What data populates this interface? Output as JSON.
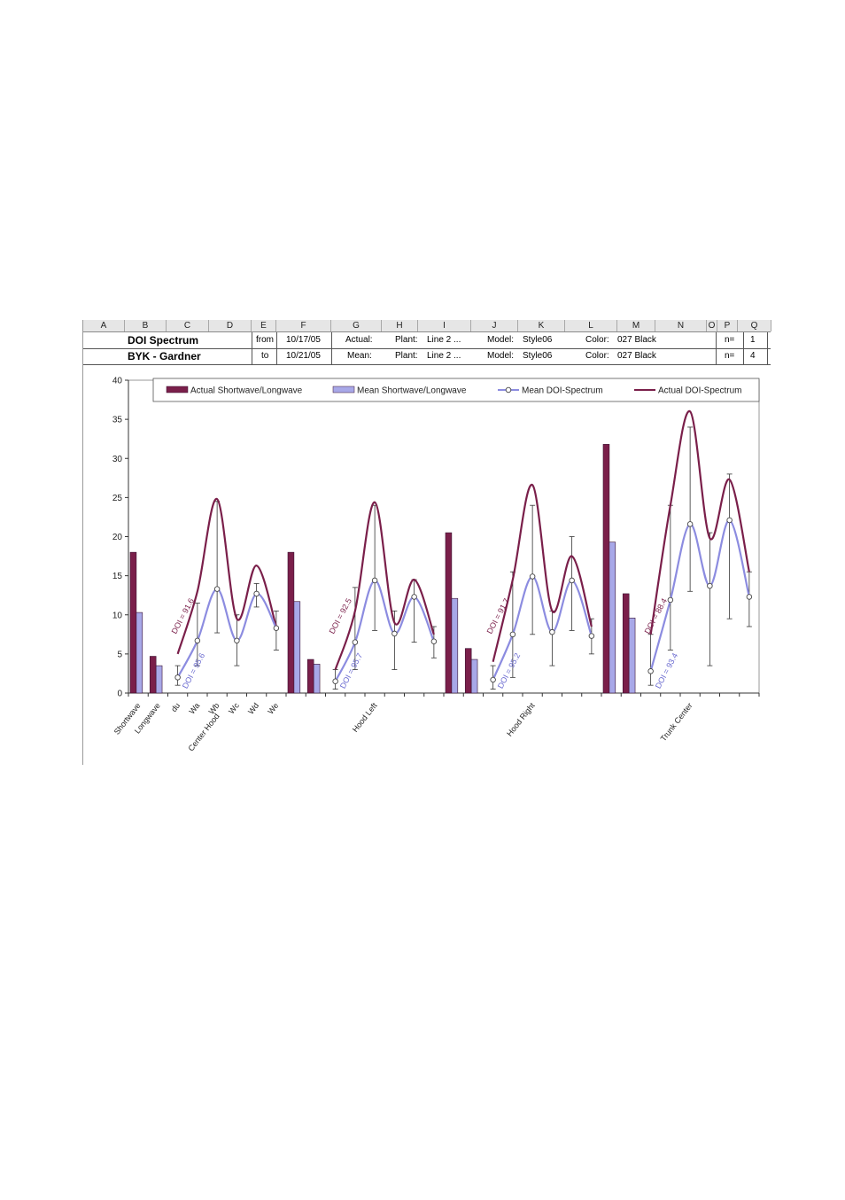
{
  "columns": [
    "A",
    "B",
    "C",
    "D",
    "E",
    "F",
    "G",
    "H",
    "I",
    "J",
    "K",
    "L",
    "M",
    "N",
    "O",
    "P",
    "Q"
  ],
  "info": {
    "row1": {
      "title": "DOI Spectrum",
      "from_label": "from",
      "from_date": "10/17/05",
      "type": "Actual:",
      "plant_label": "Plant:",
      "plant": "Line 2 ...",
      "model_label": "Model:",
      "model": "Style06",
      "color_label": "Color:",
      "color": "027 Black",
      "n_label": "n=",
      "n": "1"
    },
    "row2": {
      "title": "BYK - Gardner",
      "to_label": "to",
      "to_date": "10/21/05",
      "type": "Mean:",
      "plant_label": "Plant:",
      "plant": "Line 2 ...",
      "model_label": "Model:",
      "model": "Style06",
      "color_label": "Color:",
      "color": "027 Black",
      "n_label": "n=",
      "n": "4"
    }
  },
  "colors": {
    "actual_bar": "#7a1f4a",
    "mean_bar": "#a8a8e8",
    "mean_line": "#8c8ce0",
    "actual_line": "#7a1f4a",
    "error_bar": "#333333"
  },
  "chart_data": {
    "type": "bar",
    "ylim": [
      0,
      40
    ],
    "yticks": [
      0,
      5,
      10,
      15,
      20,
      25,
      30,
      35,
      40
    ],
    "grid": false,
    "legend_placement": "top",
    "legend": [
      "Actual Shortwave/Longwave",
      "Mean Shortwave/Longwave",
      "Mean DOI-Spectrum",
      "Actual DOI-Spectrum"
    ],
    "tick_labels": [
      "Shortwave",
      "Longwave",
      "du",
      "Wa",
      "Wb",
      "Wc",
      "Wd",
      "We"
    ],
    "groups": [
      {
        "name": "Center Hood",
        "shortwave": {
          "actual": 18.0,
          "mean": 10.3
        },
        "longwave": {
          "actual": 4.7,
          "mean": 3.5
        },
        "spectrum_actual": [
          5.0,
          13.0,
          24.8,
          9.5,
          16.3,
          8.5
        ],
        "spectrum_mean": [
          2.0,
          6.7,
          13.3,
          6.7,
          12.7,
          8.3
        ],
        "error": [
          [
            1.0,
            3.5
          ],
          [
            3.5,
            11.5
          ],
          [
            7.7,
            24.5
          ],
          [
            3.5,
            10.0
          ],
          [
            11.0,
            14.0
          ],
          [
            5.5,
            10.5
          ]
        ],
        "doi_actual": "DOI = 91.6",
        "doi_mean": "DOI = 95.6"
      },
      {
        "name": "Hood Left",
        "shortwave": {
          "actual": 18.0,
          "mean": 11.7
        },
        "longwave": {
          "actual": 4.3,
          "mean": 3.7
        },
        "spectrum_actual": [
          3.0,
          10.5,
          24.4,
          9.0,
          14.5,
          7.5
        ],
        "spectrum_mean": [
          1.5,
          6.5,
          14.4,
          7.6,
          12.3,
          6.6
        ],
        "error": [
          [
            0.5,
            3.0
          ],
          [
            3.0,
            13.5
          ],
          [
            8.0,
            24.0
          ],
          [
            3.0,
            10.5
          ],
          [
            6.5,
            14.5
          ],
          [
            4.5,
            8.5
          ]
        ],
        "doi_actual": "DOI = 92.5",
        "doi_mean": "DOI = 95.7"
      },
      {
        "name": "Hood Right",
        "shortwave": {
          "actual": 20.5,
          "mean": 12.1
        },
        "longwave": {
          "actual": 5.7,
          "mean": 4.3
        },
        "spectrum_actual": [
          4.0,
          14.5,
          26.6,
          10.5,
          17.5,
          8.5
        ],
        "spectrum_mean": [
          1.7,
          7.5,
          14.9,
          7.8,
          14.4,
          7.3
        ],
        "error": [
          [
            0.5,
            3.5
          ],
          [
            2.0,
            15.5
          ],
          [
            7.5,
            24.0
          ],
          [
            3.5,
            10.5
          ],
          [
            8.0,
            20.0
          ],
          [
            5.0,
            9.5
          ]
        ],
        "doi_actual": "DOI = 91.7",
        "doi_mean": "DOI = 95.2"
      },
      {
        "name": "Trunk Center",
        "shortwave": {
          "actual": 31.8,
          "mean": 19.3
        },
        "longwave": {
          "actual": 12.7,
          "mean": 9.6
        },
        "spectrum_actual": [
          7.5,
          24.0,
          36.0,
          19.8,
          27.3,
          15.5
        ],
        "spectrum_mean": [
          2.8,
          11.9,
          21.6,
          13.7,
          22.1,
          12.3
        ],
        "error": [
          [
            1.0,
            7.5
          ],
          [
            5.5,
            24.0
          ],
          [
            13.0,
            34.0
          ],
          [
            3.5,
            20.5
          ],
          [
            9.5,
            28.0
          ],
          [
            8.5,
            15.5
          ]
        ],
        "doi_actual": "DOI = 88.4",
        "doi_mean": "DOI = 93.4"
      }
    ]
  }
}
